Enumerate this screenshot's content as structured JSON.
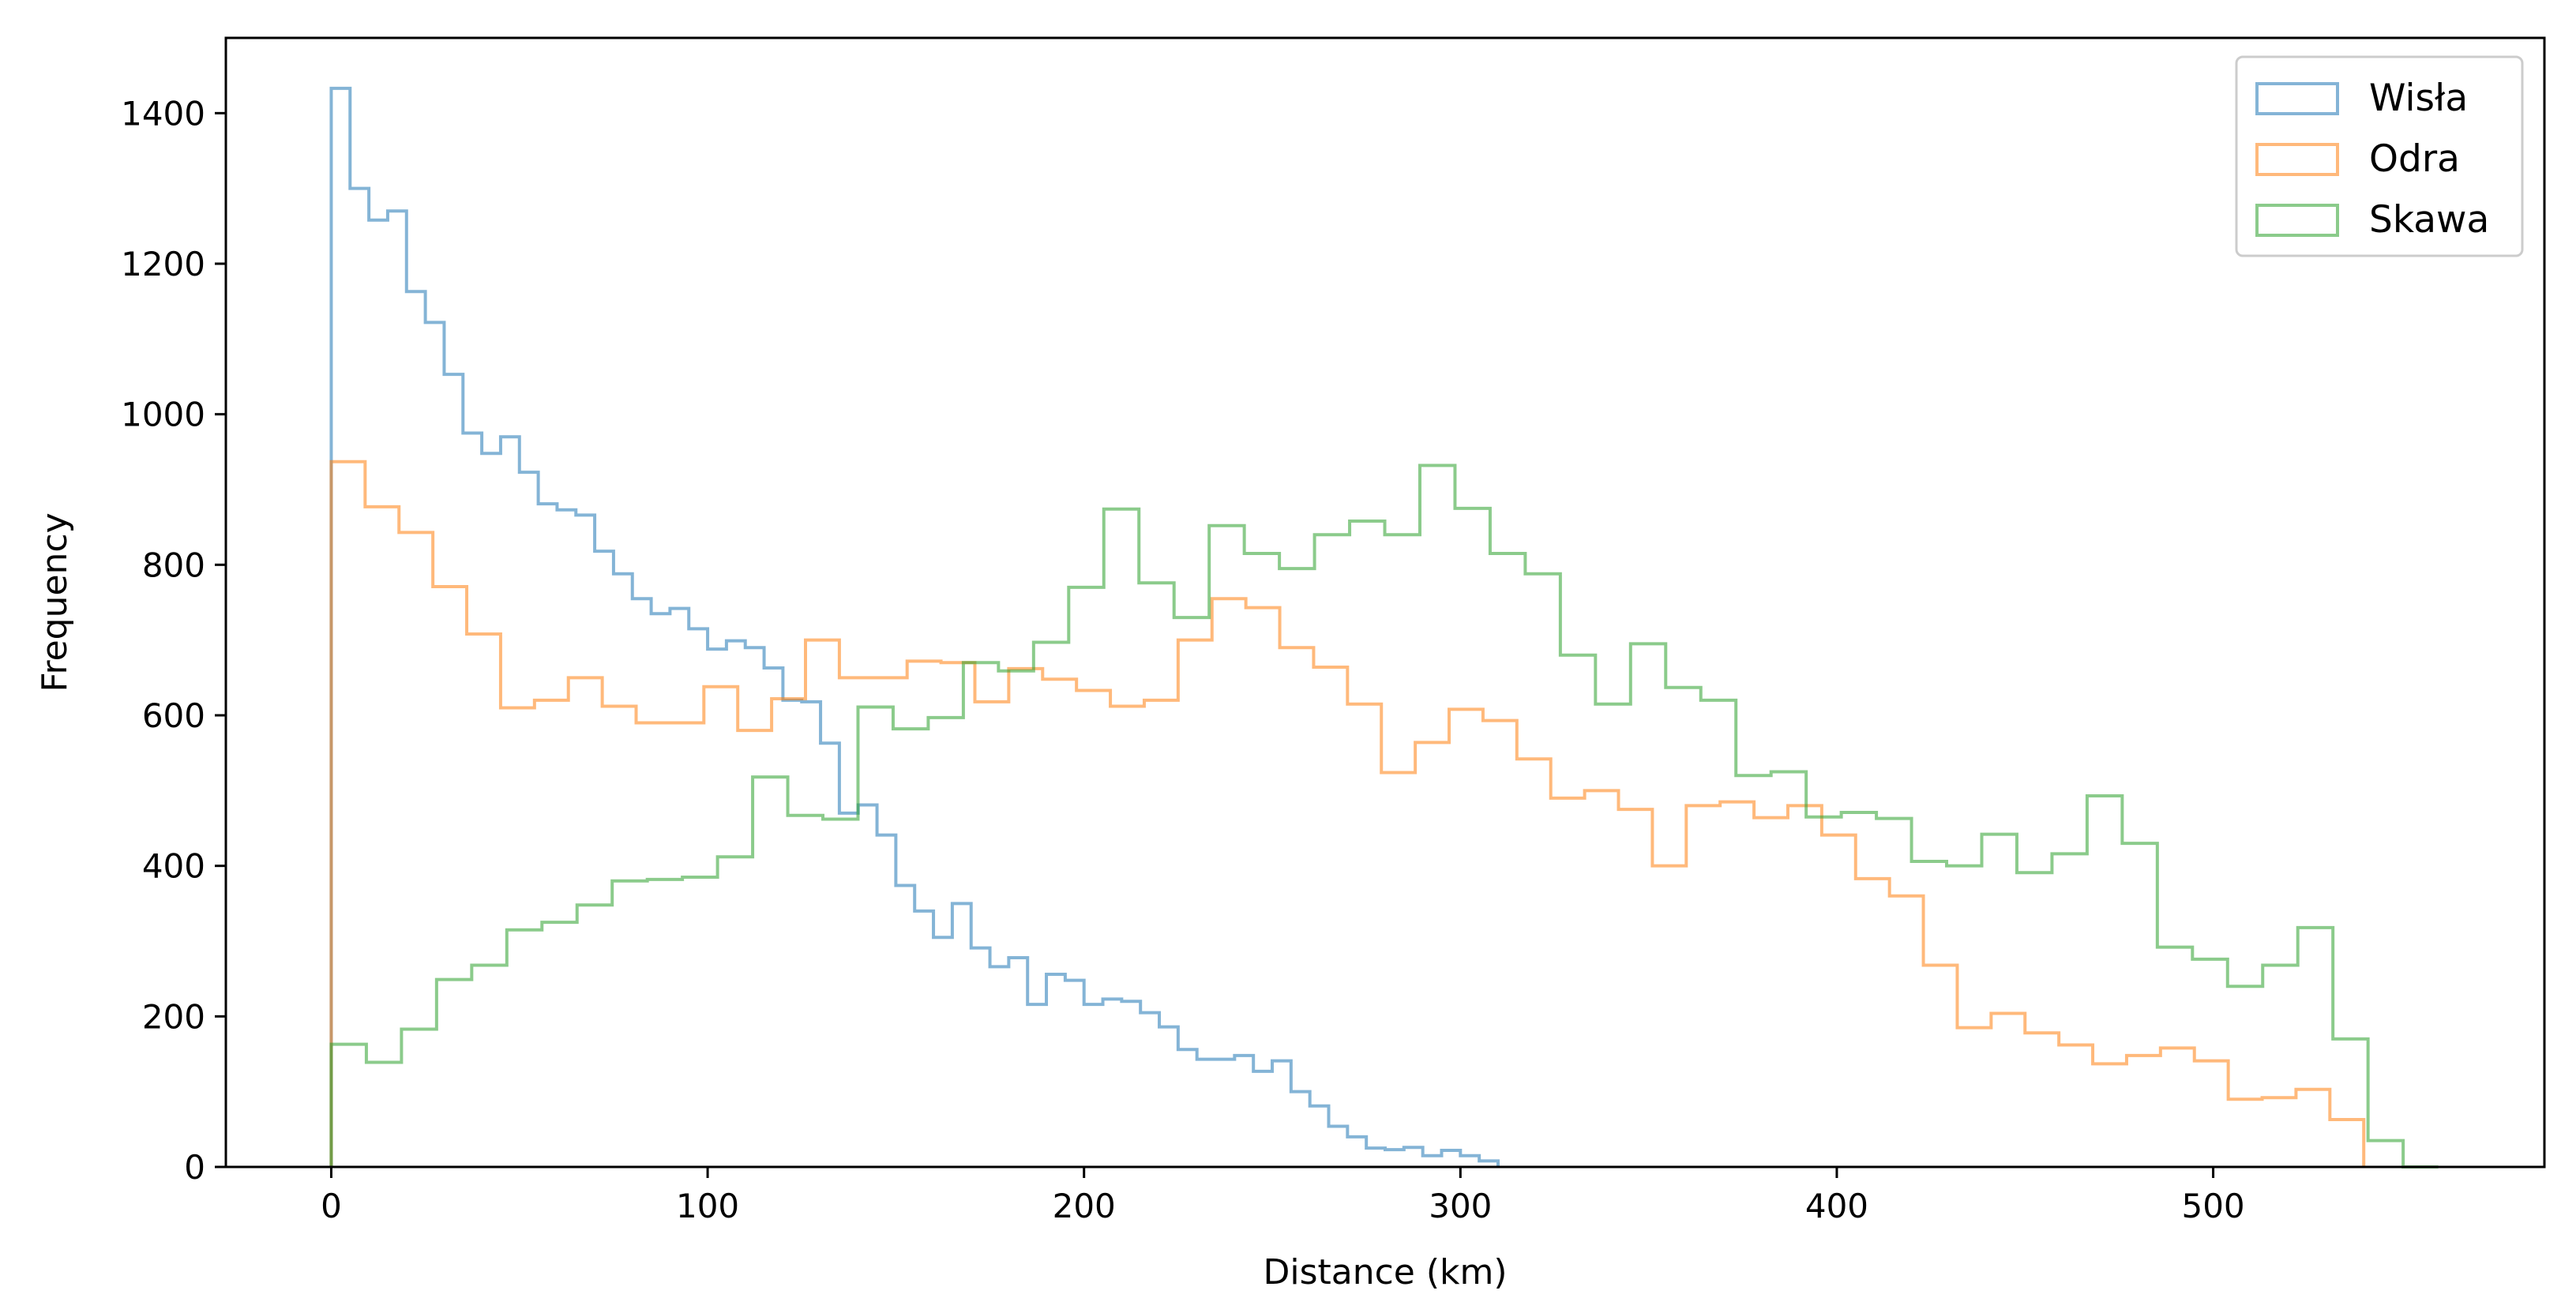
{
  "chart_data": {
    "type": "histogram",
    "title": "",
    "xlabel": "Distance (km)",
    "ylabel": "Frequency",
    "xlim": [
      -28,
      588
    ],
    "ylim": [
      0,
      1500
    ],
    "xticks": [
      0,
      100,
      200,
      300,
      400,
      500
    ],
    "yticks": [
      0,
      200,
      400,
      600,
      800,
      1000,
      1200,
      1400
    ],
    "grid": false,
    "legend": {
      "position": "upper right"
    },
    "series": [
      {
        "name": "Wisła",
        "color": "#1f77b4",
        "bin_start": 0,
        "bin_width": 5,
        "counts": [
          1433,
          1300,
          1258,
          1270,
          1163,
          1122,
          1053,
          975,
          948,
          970,
          923,
          881,
          873,
          866,
          818,
          788,
          755,
          735,
          742,
          715,
          688,
          699,
          690,
          663,
          620,
          618,
          563,
          470,
          481,
          441,
          374,
          340,
          305,
          350,
          291,
          266,
          278,
          216,
          256,
          248,
          216,
          223,
          220,
          205,
          186,
          156,
          143,
          143,
          148,
          127,
          141,
          100,
          81,
          54,
          40,
          25,
          23,
          26,
          15,
          22,
          15,
          8
        ]
      },
      {
        "name": "Odra",
        "color": "#ff7f0e",
        "bin_start": 0,
        "bin_width": 9,
        "counts": [
          937,
          877,
          843,
          771,
          708,
          610,
          620,
          650,
          612,
          590,
          590,
          638,
          580,
          622,
          700,
          650,
          650,
          672,
          670,
          618,
          662,
          648,
          633,
          612,
          620,
          700,
          755,
          743,
          690,
          664,
          615,
          524,
          564,
          608,
          593,
          542,
          490,
          500,
          475,
          400,
          480,
          485,
          464,
          480,
          441,
          383,
          360,
          268,
          185,
          204,
          178,
          162,
          137,
          148,
          158,
          141,
          90,
          92,
          103,
          63
        ]
      },
      {
        "name": "Skawa",
        "color": "#2ca02c",
        "bin_start": 0,
        "bin_width": 9.33,
        "counts": [
          163,
          139,
          183,
          249,
          268,
          315,
          325,
          348,
          380,
          382,
          385,
          412,
          518,
          467,
          462,
          611,
          582,
          597,
          670,
          659,
          697,
          770,
          874,
          776,
          730,
          852,
          815,
          795,
          840,
          858,
          840,
          932,
          875,
          815,
          788,
          680,
          615,
          695,
          637,
          620,
          520,
          525,
          465,
          471,
          463,
          406,
          400,
          442,
          391,
          416,
          493,
          430,
          292,
          276,
          240,
          268,
          318,
          170,
          35,
          0
        ]
      }
    ]
  }
}
